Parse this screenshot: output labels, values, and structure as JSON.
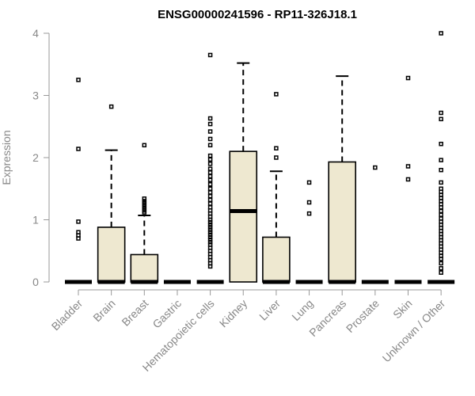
{
  "chart_data": {
    "type": "box",
    "title": "ENSG00000241596 - RP11-326J18.1",
    "xlabel": "",
    "ylabel": "Expression",
    "ylim": [
      0,
      4
    ],
    "yticks": [
      "0",
      "1",
      "2",
      "3",
      "4"
    ],
    "grid": false,
    "categories": [
      "Bladder",
      "Brain",
      "Breast",
      "Gastric",
      "Hematopoietic cells",
      "Kidney",
      "Liver",
      "Lung",
      "Pancreas",
      "Prostate",
      "Skin",
      "Unknown / Other"
    ],
    "boxes": [
      {
        "q1": 0,
        "median": 0,
        "q3": 0,
        "whisker_low": 0,
        "whisker_high": 0,
        "outliers": [
          3.25,
          2.14,
          0.97,
          0.8,
          0.75,
          0.7
        ]
      },
      {
        "q1": 0,
        "median": 0,
        "q3": 0.88,
        "whisker_low": 0,
        "whisker_high": 2.12,
        "outliers": [
          2.82
        ]
      },
      {
        "q1": 0,
        "median": 0,
        "q3": 0.44,
        "whisker_low": 0,
        "whisker_high": 1.07,
        "outliers": [
          2.2,
          1.34,
          1.3,
          1.27,
          1.24,
          1.21,
          1.18,
          1.15,
          1.12
        ]
      },
      {
        "q1": 0,
        "median": 0,
        "q3": 0,
        "whisker_low": 0,
        "whisker_high": 0,
        "outliers": []
      },
      {
        "q1": 0,
        "median": 0,
        "q3": 0,
        "whisker_low": 0,
        "whisker_high": 0,
        "outliers": [
          3.65,
          2.63,
          2.54,
          2.42,
          2.3,
          2.2,
          2.03,
          1.97,
          1.9,
          1.82,
          1.76,
          1.7,
          1.64,
          1.57,
          1.5,
          1.44,
          1.38,
          1.32,
          1.26,
          1.2,
          1.15,
          1.1,
          1.05,
          1.0,
          0.96,
          0.92,
          0.88,
          0.84,
          0.8,
          0.76,
          0.72,
          0.68,
          0.64,
          0.6,
          0.55,
          0.5,
          0.45,
          0.4,
          0.35,
          0.3,
          0.25
        ]
      },
      {
        "q1": 0,
        "median": 1.14,
        "q3": 2.1,
        "whisker_low": 0,
        "whisker_high": 3.52,
        "outliers": []
      },
      {
        "q1": 0,
        "median": 0,
        "q3": 0.72,
        "whisker_low": 0,
        "whisker_high": 1.78,
        "outliers": [
          3.02,
          2.15,
          2.0
        ]
      },
      {
        "q1": 0,
        "median": 0,
        "q3": 0,
        "whisker_low": 0,
        "whisker_high": 0,
        "outliers": [
          1.6,
          1.28,
          1.1
        ]
      },
      {
        "q1": 0,
        "median": 0,
        "q3": 1.93,
        "whisker_low": 0,
        "whisker_high": 3.31,
        "outliers": []
      },
      {
        "q1": 0,
        "median": 0,
        "q3": 0,
        "whisker_low": 0,
        "whisker_high": 0,
        "outliers": [
          1.84
        ]
      },
      {
        "q1": 0,
        "median": 0,
        "q3": 0,
        "whisker_low": 0,
        "whisker_high": 0,
        "outliers": [
          3.28,
          1.86,
          1.65
        ]
      },
      {
        "q1": 0,
        "median": 0,
        "q3": 0,
        "whisker_low": 0,
        "whisker_high": 0,
        "outliers": [
          4.0,
          2.72,
          2.62,
          2.22,
          1.96,
          1.8,
          1.6,
          1.5,
          1.45,
          1.4,
          1.35,
          1.3,
          1.25,
          1.2,
          1.14,
          1.08,
          1.02,
          0.97,
          0.92,
          0.87,
          0.82,
          0.77,
          0.72,
          0.67,
          0.62,
          0.57,
          0.52,
          0.47,
          0.42,
          0.37,
          0.3,
          0.22,
          0.15
        ]
      }
    ]
  }
}
